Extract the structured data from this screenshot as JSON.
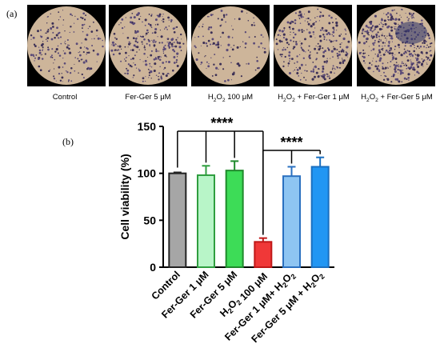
{
  "figure": {
    "panel_a_label": "(a)",
    "panel_b_label": "(b)",
    "micrographs": [
      {
        "caption": "Control"
      },
      {
        "caption": "Fer-Ger 5 μM"
      },
      {
        "caption": "H2O2 100 μM"
      },
      {
        "caption": "H2O2 + Fer-Ger 1 μM"
      },
      {
        "caption": "H2O2 + Fer-Ger 5 μM"
      }
    ]
  },
  "chart_data": {
    "type": "bar",
    "ylabel": "Cell viability (%)",
    "xlabel": "",
    "ylim": [
      0,
      150
    ],
    "yticks": [
      0,
      50,
      100,
      150
    ],
    "categories": [
      "Control",
      "Fer-Ger 1 μM",
      "Fer-Ger 5 μM",
      "H2O2 100 μM",
      "Fer-Ger 1 μM+ H2O2",
      "Fer-Ger 5 μM + H2O2"
    ],
    "values": [
      100,
      98,
      103,
      27,
      97,
      107
    ],
    "errors": [
      1,
      10,
      10,
      4,
      10,
      10
    ],
    "fill_colors": [
      "#a6a6a6",
      "#b8f5c8",
      "#3ddc57",
      "#f03838",
      "#8ec5f2",
      "#2196f3"
    ],
    "edge_colors": [
      "#222222",
      "#2f9e3f",
      "#1f8a2c",
      "#c01818",
      "#2a70c0",
      "#1a6fc0"
    ],
    "significance": [
      {
        "from_category": 0,
        "to_categories": [
          1,
          2,
          3
        ],
        "label": "****"
      },
      {
        "from_category": 3,
        "to_categories": [
          4,
          5
        ],
        "label": "****"
      }
    ]
  }
}
